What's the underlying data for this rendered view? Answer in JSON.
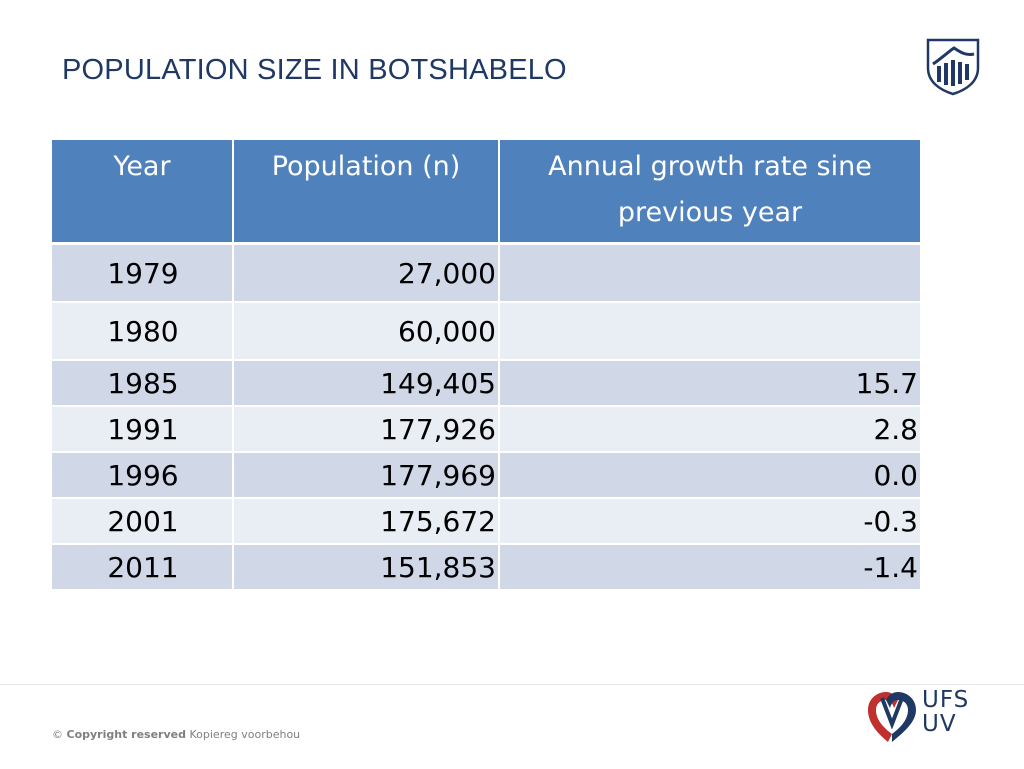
{
  "slide": {
    "title": "POPULATION SIZE IN BOTSHABELO"
  },
  "table": {
    "headers": {
      "year": "Year",
      "population": "Population (n)",
      "rate_line1": "Annual growth rate sine",
      "rate_line2": "previous year"
    },
    "rows": [
      {
        "year": "1979",
        "population": "27,000",
        "rate": ""
      },
      {
        "year": "1980",
        "population": "60,000",
        "rate": ""
      },
      {
        "year": "1985",
        "population": "149,405",
        "rate": "15.7"
      },
      {
        "year": "1991",
        "population": "177,926",
        "rate": "2.8"
      },
      {
        "year": "1996",
        "population": "177,969",
        "rate": "0.0"
      },
      {
        "year": "2001",
        "population": "175,672",
        "rate": "-0.3"
      },
      {
        "year": "2011",
        "population": "151,853",
        "rate": "-1.4"
      }
    ]
  },
  "footer": {
    "copyright_symbol": "©",
    "copyright_bold": "Copyright reserved",
    "copyright_rest": "Kopiereg voorbehou",
    "logo_line1": "UFS",
    "logo_line2": "UV"
  },
  "colors": {
    "header_bg": "#4f81bd",
    "row_odd": "#d0d8e8",
    "row_even": "#e9edf4",
    "title": "#1f3864",
    "logo_red": "#c0302e"
  },
  "icons": {
    "top_logo": "university-crest-icon",
    "footer_logo": "ufs-heart-icon"
  }
}
